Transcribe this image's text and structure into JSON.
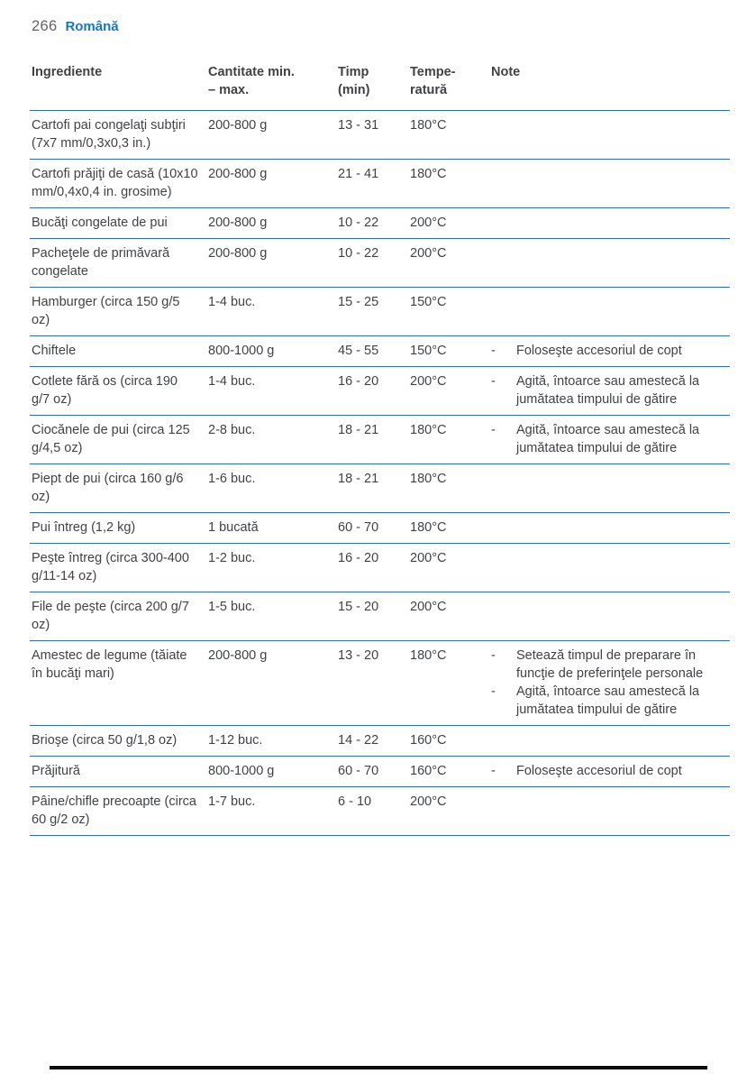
{
  "page": {
    "number": "266",
    "language": "Română"
  },
  "colors": {
    "accent_blue": "#1777bc",
    "header_navy": "#1f3b70",
    "rule_blue": "#2e6db4",
    "body_text": "#404245",
    "page_number_gray": "#636466",
    "bottom_rule_black": "#0a0a0a"
  },
  "table": {
    "headers": {
      "ingredient": {
        "line1": "Ingrediente",
        "line2": ""
      },
      "quantity": {
        "line1": "Cantitate min.",
        "line2": "– max."
      },
      "time": {
        "line1": "Timp",
        "line2": "(min)"
      },
      "temperature": {
        "line1": "Tempe-",
        "line2": "ratură"
      },
      "notes": {
        "line1": "Note",
        "line2": ""
      }
    },
    "rows": [
      {
        "ingredient": "Cartofi pai congelaţi subţiri (7x7 mm/0,3x0,3 in.)",
        "quantity": "200-800 g",
        "time": "13 - 31",
        "temperature": "180°C",
        "notes": []
      },
      {
        "ingredient": "Cartofi prăjiţi de casă (10x10 mm/0,4x0,4 in. grosime)",
        "quantity": "200-800 g",
        "time": "21 - 41",
        "temperature": "180°C",
        "notes": []
      },
      {
        "ingredient": "Bucăţi congelate de pui",
        "quantity": "200-800 g",
        "time": "10 - 22",
        "temperature": "200°C",
        "notes": []
      },
      {
        "ingredient": "Pacheţele de primăvară congelate",
        "quantity": "200-800 g",
        "time": "10 - 22",
        "temperature": "200°C",
        "notes": []
      },
      {
        "ingredient": "Hamburger (circa 150 g/5 oz)",
        "quantity": "1-4 buc.",
        "time": "15 - 25",
        "temperature": "150°C",
        "notes": []
      },
      {
        "ingredient": "Chiftele",
        "quantity": "800-1000 g",
        "time": "45 - 55",
        "temperature": "150°C",
        "notes": [
          "Foloseşte accesoriul de copt"
        ]
      },
      {
        "ingredient": "Cotlete fără os (circa 190 g/7 oz)",
        "quantity": "1-4 buc.",
        "time": "16 - 20",
        "temperature": "200°C",
        "notes": [
          "Agită, întoarce sau amestecă la jumătatea timpului de gătire"
        ]
      },
      {
        "ingredient": "Ciocănele de pui (circa 125 g/4,5 oz)",
        "quantity": "2-8 buc.",
        "time": "18 - 21",
        "temperature": "180°C",
        "notes": [
          "Agită, întoarce sau amestecă la jumătatea timpului de gătire"
        ]
      },
      {
        "ingredient": "Piept de pui (circa 160 g/6 oz)",
        "quantity": "1-6 buc.",
        "time": "18 - 21",
        "temperature": "180°C",
        "notes": []
      },
      {
        "ingredient": "Pui întreg (1,2 kg)",
        "quantity": "1 bucată",
        "time": "60 - 70",
        "temperature": "180°C",
        "notes": []
      },
      {
        "ingredient": "Peşte întreg (circa 300-400 g/11-14 oz)",
        "quantity": "1-2 buc.",
        "time": "16 - 20",
        "temperature": "200°C",
        "notes": []
      },
      {
        "ingredient": "File de peşte (circa 200 g/7 oz)",
        "quantity": "1-5 buc.",
        "time": "15 - 20",
        "temperature": "200°C",
        "notes": []
      },
      {
        "ingredient": "Amestec de legume (tăiate în bucăţi mari)",
        "quantity": "200-800 g",
        "time": "13 - 20",
        "temperature": "180°C",
        "notes": [
          "Setează timpul de preparare în funcţie de preferinţele personale",
          "Agită, întoarce sau amestecă la jumătatea timpului de gătire"
        ]
      },
      {
        "ingredient": "Brioşe (circa 50 g/1,8 oz)",
        "quantity": "1-12 buc.",
        "time": "14 - 22",
        "temperature": "160°C",
        "notes": []
      },
      {
        "ingredient": "Prăjitură",
        "quantity": "800-1000 g",
        "time": "60 - 70",
        "temperature": "160°C",
        "notes": [
          "Foloseşte accesoriul de copt"
        ]
      },
      {
        "ingredient": "Pâine/chifle precoapte (circa 60 g/2 oz)",
        "quantity": "1-7 buc.",
        "time": "6 - 10",
        "temperature": "200°C",
        "notes": []
      }
    ]
  }
}
